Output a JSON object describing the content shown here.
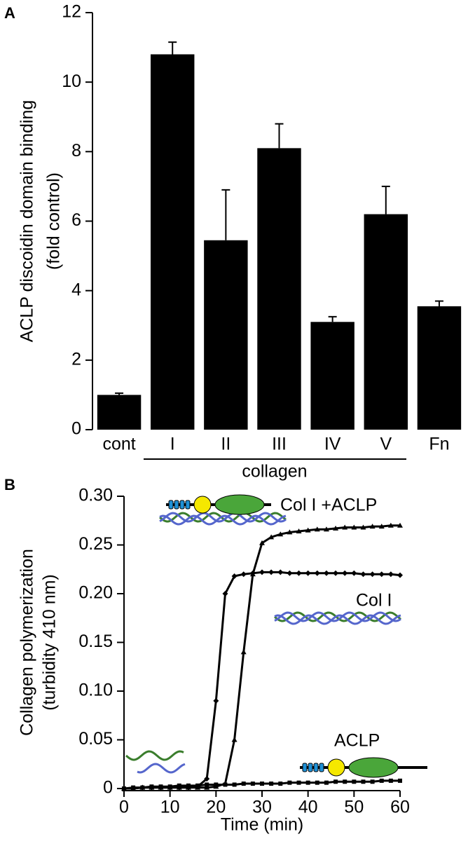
{
  "chart_data": [
    {
      "type": "bar",
      "panel": "A",
      "ylabel": [
        "ACLP discoidin domain binding",
        "(fold control)"
      ],
      "categories": [
        "cont",
        "I",
        "II",
        "III",
        "IV",
        "V",
        "Fn"
      ],
      "values": [
        1.0,
        10.8,
        5.45,
        8.1,
        3.1,
        6.2,
        3.55
      ],
      "errors": [
        0.05,
        0.35,
        1.45,
        0.7,
        0.15,
        0.8,
        0.15
      ],
      "annotation": "collagen",
      "color": "#000000",
      "ylim": [
        0,
        12
      ],
      "yticks": [
        0,
        2,
        4,
        6,
        8,
        10,
        12
      ]
    },
    {
      "type": "line",
      "panel": "B",
      "ylabel": [
        "Collagen polymerization",
        "(turbidity 410 nm)"
      ],
      "xlabel": "Time (min)",
      "x": [
        0,
        2,
        4,
        6,
        8,
        10,
        12,
        14,
        16,
        18,
        20,
        22,
        24,
        26,
        28,
        30,
        32,
        34,
        36,
        38,
        40,
        42,
        44,
        46,
        48,
        50,
        52,
        54,
        56,
        58,
        60
      ],
      "series": [
        {
          "name": "Col I +ACLP",
          "color": "#000000",
          "marker": "triangle",
          "values": [
            0,
            0,
            0.001,
            0.001,
            0.001,
            0.001,
            0.001,
            0.001,
            0.001,
            0.001,
            0.002,
            0.005,
            0.05,
            0.14,
            0.22,
            0.252,
            0.258,
            0.261,
            0.263,
            0.264,
            0.265,
            0.266,
            0.266,
            0.267,
            0.268,
            0.268,
            0.268,
            0.269,
            0.269,
            0.27,
            0.27
          ]
        },
        {
          "name": "Col I",
          "color": "#000000",
          "marker": "diamond",
          "values": [
            0,
            0,
            0.001,
            0.001,
            0.001,
            0.001,
            0.001,
            0.001,
            0.002,
            0.01,
            0.09,
            0.2,
            0.218,
            0.22,
            0.221,
            0.222,
            0.222,
            0.222,
            0.221,
            0.221,
            0.221,
            0.221,
            0.221,
            0.221,
            0.221,
            0.221,
            0.22,
            0.22,
            0.22,
            0.22,
            0.219
          ]
        },
        {
          "name": "ACLP",
          "color": "#000000",
          "marker": "square",
          "values": [
            0,
            0.001,
            0.001,
            0.002,
            0.002,
            0.002,
            0.003,
            0.003,
            0.003,
            0.004,
            0.004,
            0.004,
            0.004,
            0.005,
            0.005,
            0.005,
            0.005,
            0.005,
            0.006,
            0.006,
            0.006,
            0.006,
            0.006,
            0.007,
            0.007,
            0.007,
            0.007,
            0.007,
            0.008,
            0.008,
            0.008
          ]
        }
      ],
      "xlim": [
        0,
        60
      ],
      "xticks": [
        0,
        10,
        20,
        30,
        40,
        50,
        60
      ],
      "ylim": [
        0,
        0.3
      ],
      "yticks": [
        0,
        0.05,
        {
          "value": 0.1,
          "label": "0.10"
        },
        0.15,
        {
          "value": 0.2,
          "label": "0.20"
        },
        0.25,
        {
          "value": 0.3,
          "label": "0.30"
        }
      ]
    }
  ]
}
